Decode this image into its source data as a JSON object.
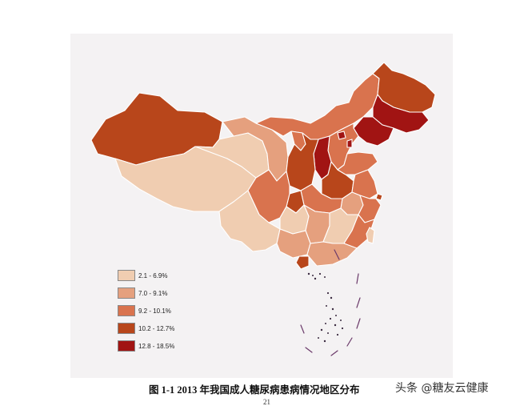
{
  "legend": {
    "items": [
      {
        "label": "2.1 - 6.9%",
        "color": "#f0cdb1"
      },
      {
        "label": "7.0 - 9.1%",
        "color": "#e5a07e"
      },
      {
        "label": "9.2 - 10.1%",
        "color": "#d9734e"
      },
      {
        "label": "10.2 - 12.7%",
        "color": "#b8461b"
      },
      {
        "label": "12.8 - 18.5%",
        "color": "#a11413"
      }
    ]
  },
  "provinces": [
    {
      "name": "xinjiang",
      "class": 3
    },
    {
      "name": "tibet",
      "class": 0
    },
    {
      "name": "qinghai",
      "class": 0
    },
    {
      "name": "gansu",
      "class": 1
    },
    {
      "name": "inner-mongolia",
      "class": 2
    },
    {
      "name": "heilongjiang",
      "class": 3
    },
    {
      "name": "jilin",
      "class": 4
    },
    {
      "name": "liaoning",
      "class": 4
    },
    {
      "name": "hebei",
      "class": 2
    },
    {
      "name": "beijing",
      "class": 4
    },
    {
      "name": "tianjin",
      "class": 4
    },
    {
      "name": "shanxi",
      "class": 4
    },
    {
      "name": "shaanxi",
      "class": 3
    },
    {
      "name": "ningxia",
      "class": 2
    },
    {
      "name": "henan",
      "class": 3
    },
    {
      "name": "shandong",
      "class": 2
    },
    {
      "name": "jiangsu",
      "class": 2
    },
    {
      "name": "anhui",
      "class": 1
    },
    {
      "name": "hubei",
      "class": 2
    },
    {
      "name": "sichuan",
      "class": 2
    },
    {
      "name": "chongqing",
      "class": 3
    },
    {
      "name": "yunnan",
      "class": 0
    },
    {
      "name": "guizhou",
      "class": 0
    },
    {
      "name": "hunan",
      "class": 1
    },
    {
      "name": "jiangxi",
      "class": 0
    },
    {
      "name": "zhejiang",
      "class": 2
    },
    {
      "name": "shanghai",
      "class": 3
    },
    {
      "name": "fujian",
      "class": 2
    },
    {
      "name": "guangxi",
      "class": 1
    },
    {
      "name": "guangdong",
      "class": 1
    },
    {
      "name": "hainan",
      "class": 3
    },
    {
      "name": "taiwan",
      "class": 0
    }
  ],
  "caption": "图 1-1 2013 年我国成人糖尿病患病情况地区分布",
  "watermark": "头条 @糖友云健康",
  "page_number": "21"
}
